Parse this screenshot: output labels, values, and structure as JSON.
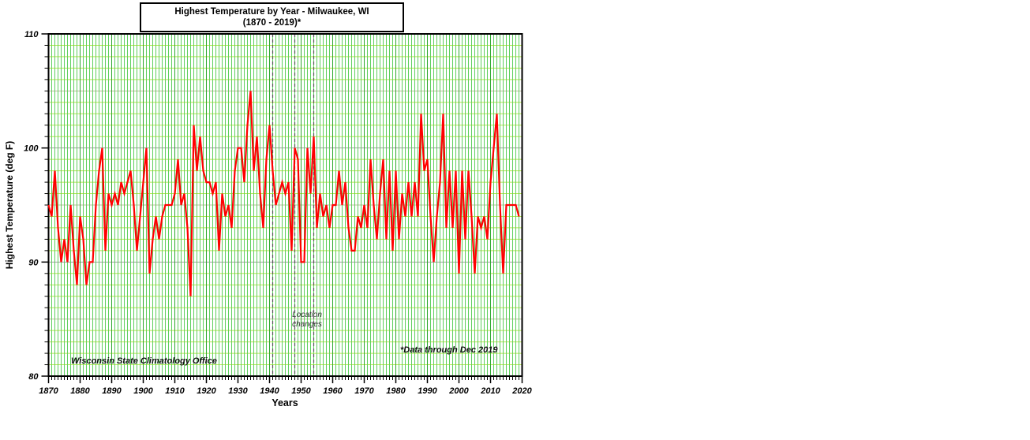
{
  "title": {
    "line1": "Highest Temperature by Year - Milwaukee, WI",
    "line2": "(1870 - 2019)*"
  },
  "axes": {
    "x_label": "Years",
    "y_label": "Highest Temperature (deg F)",
    "x_ticks": [
      1870,
      1880,
      1890,
      1900,
      1910,
      1920,
      1930,
      1940,
      1950,
      1960,
      1970,
      1980,
      1990,
      2000,
      2010,
      2020
    ],
    "y_ticks": [
      80,
      90,
      100,
      110
    ],
    "x_range": [
      1870,
      2020
    ],
    "y_range": [
      80,
      110
    ]
  },
  "annotations": {
    "office": "Wisconsin State Climatology Office",
    "data_note": "*Data through Dec 2019",
    "location_line1": "Location",
    "location_line2": "changes",
    "location_change_years": [
      1941,
      1948,
      1954
    ]
  },
  "colors": {
    "line": "#ff0000",
    "grid_minor_h": "#b4e84c",
    "grid_5deg_h": "#bdbd9c",
    "grid_10deg_h": "#9e9e9e",
    "grid_minor_v": "#5ecf5e",
    "grid_decade_v": "#2fa82f",
    "dashed_line": "#555555",
    "axis": "#000000",
    "background": "#ffffff"
  },
  "chart_data": {
    "type": "line",
    "title": "Highest Temperature by Year - Milwaukee, WI (1870 - 2019)*",
    "xlabel": "Years",
    "ylabel": "Highest Temperature (deg F)",
    "xlim": [
      1870,
      2020
    ],
    "ylim": [
      80,
      110
    ],
    "grid": true,
    "start_year": 1870,
    "end_year": 2019,
    "series": [
      {
        "name": "Highest Temperature (deg F)",
        "values": [
          95,
          94,
          98,
          93,
          90,
          92,
          90,
          95,
          91,
          88,
          94,
          92,
          88,
          90,
          90,
          95,
          98,
          100,
          91,
          96,
          95,
          96,
          95,
          97,
          96,
          97,
          98,
          95,
          91,
          94,
          97,
          100,
          89,
          92,
          94,
          92,
          94,
          95,
          95,
          95,
          96,
          99,
          95,
          96,
          93,
          87,
          102,
          98,
          101,
          98,
          97,
          97,
          96,
          97,
          91,
          96,
          94,
          95,
          93,
          98,
          100,
          100,
          97,
          102,
          105,
          98,
          101,
          96,
          93,
          99,
          102,
          98,
          95,
          96,
          97,
          96,
          97,
          91,
          100,
          99,
          90,
          90,
          100,
          96,
          101,
          93,
          96,
          94,
          95,
          93,
          95,
          95,
          98,
          95,
          97,
          93,
          91,
          91,
          94,
          93,
          95,
          93,
          99,
          95,
          92,
          96,
          99,
          92,
          98,
          91,
          98,
          92,
          96,
          94,
          97,
          94,
          97,
          94,
          103,
          98,
          99,
          94,
          90,
          94,
          97,
          103,
          93,
          98,
          93,
          98,
          89,
          98,
          92,
          98,
          94,
          89,
          94,
          93,
          94,
          92,
          97,
          100,
          103,
          95,
          89,
          95,
          95,
          95,
          95,
          94
        ]
      }
    ]
  }
}
